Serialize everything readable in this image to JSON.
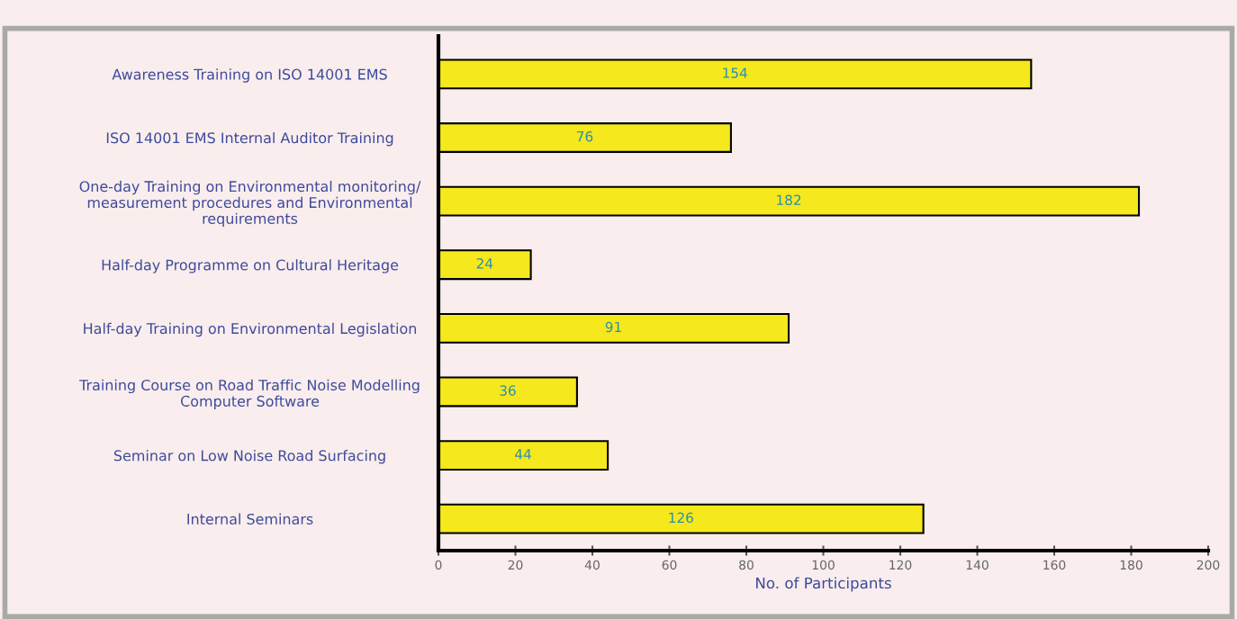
{
  "chart_data": {
    "type": "bar",
    "orientation": "horizontal",
    "xlabel": "No. of Participants",
    "categories": [
      "Awareness Training on ISO 14001 EMS",
      "ISO 14001 EMS Internal Auditor Training",
      "One-day Training on Environmental monitoring/\nmeasurement procedures and Environmental\nrequirements",
      "Half-day Programme on Cultural Heritage",
      "Half-day Training on Environmental Legislation",
      "Training Course on Road Traffic Noise Modelling\nComputer Software",
      "Seminar on Low Noise Road Surfacing",
      "Internal Seminars"
    ],
    "values": [
      154,
      76,
      182,
      24,
      91,
      36,
      44,
      126
    ],
    "color": "#f5e81c",
    "data_labels": true,
    "xlim": [
      0,
      200
    ],
    "xticks": [
      0,
      20,
      40,
      60,
      80,
      100,
      120,
      140,
      160,
      180,
      200
    ],
    "grid": false,
    "legend": false
  }
}
